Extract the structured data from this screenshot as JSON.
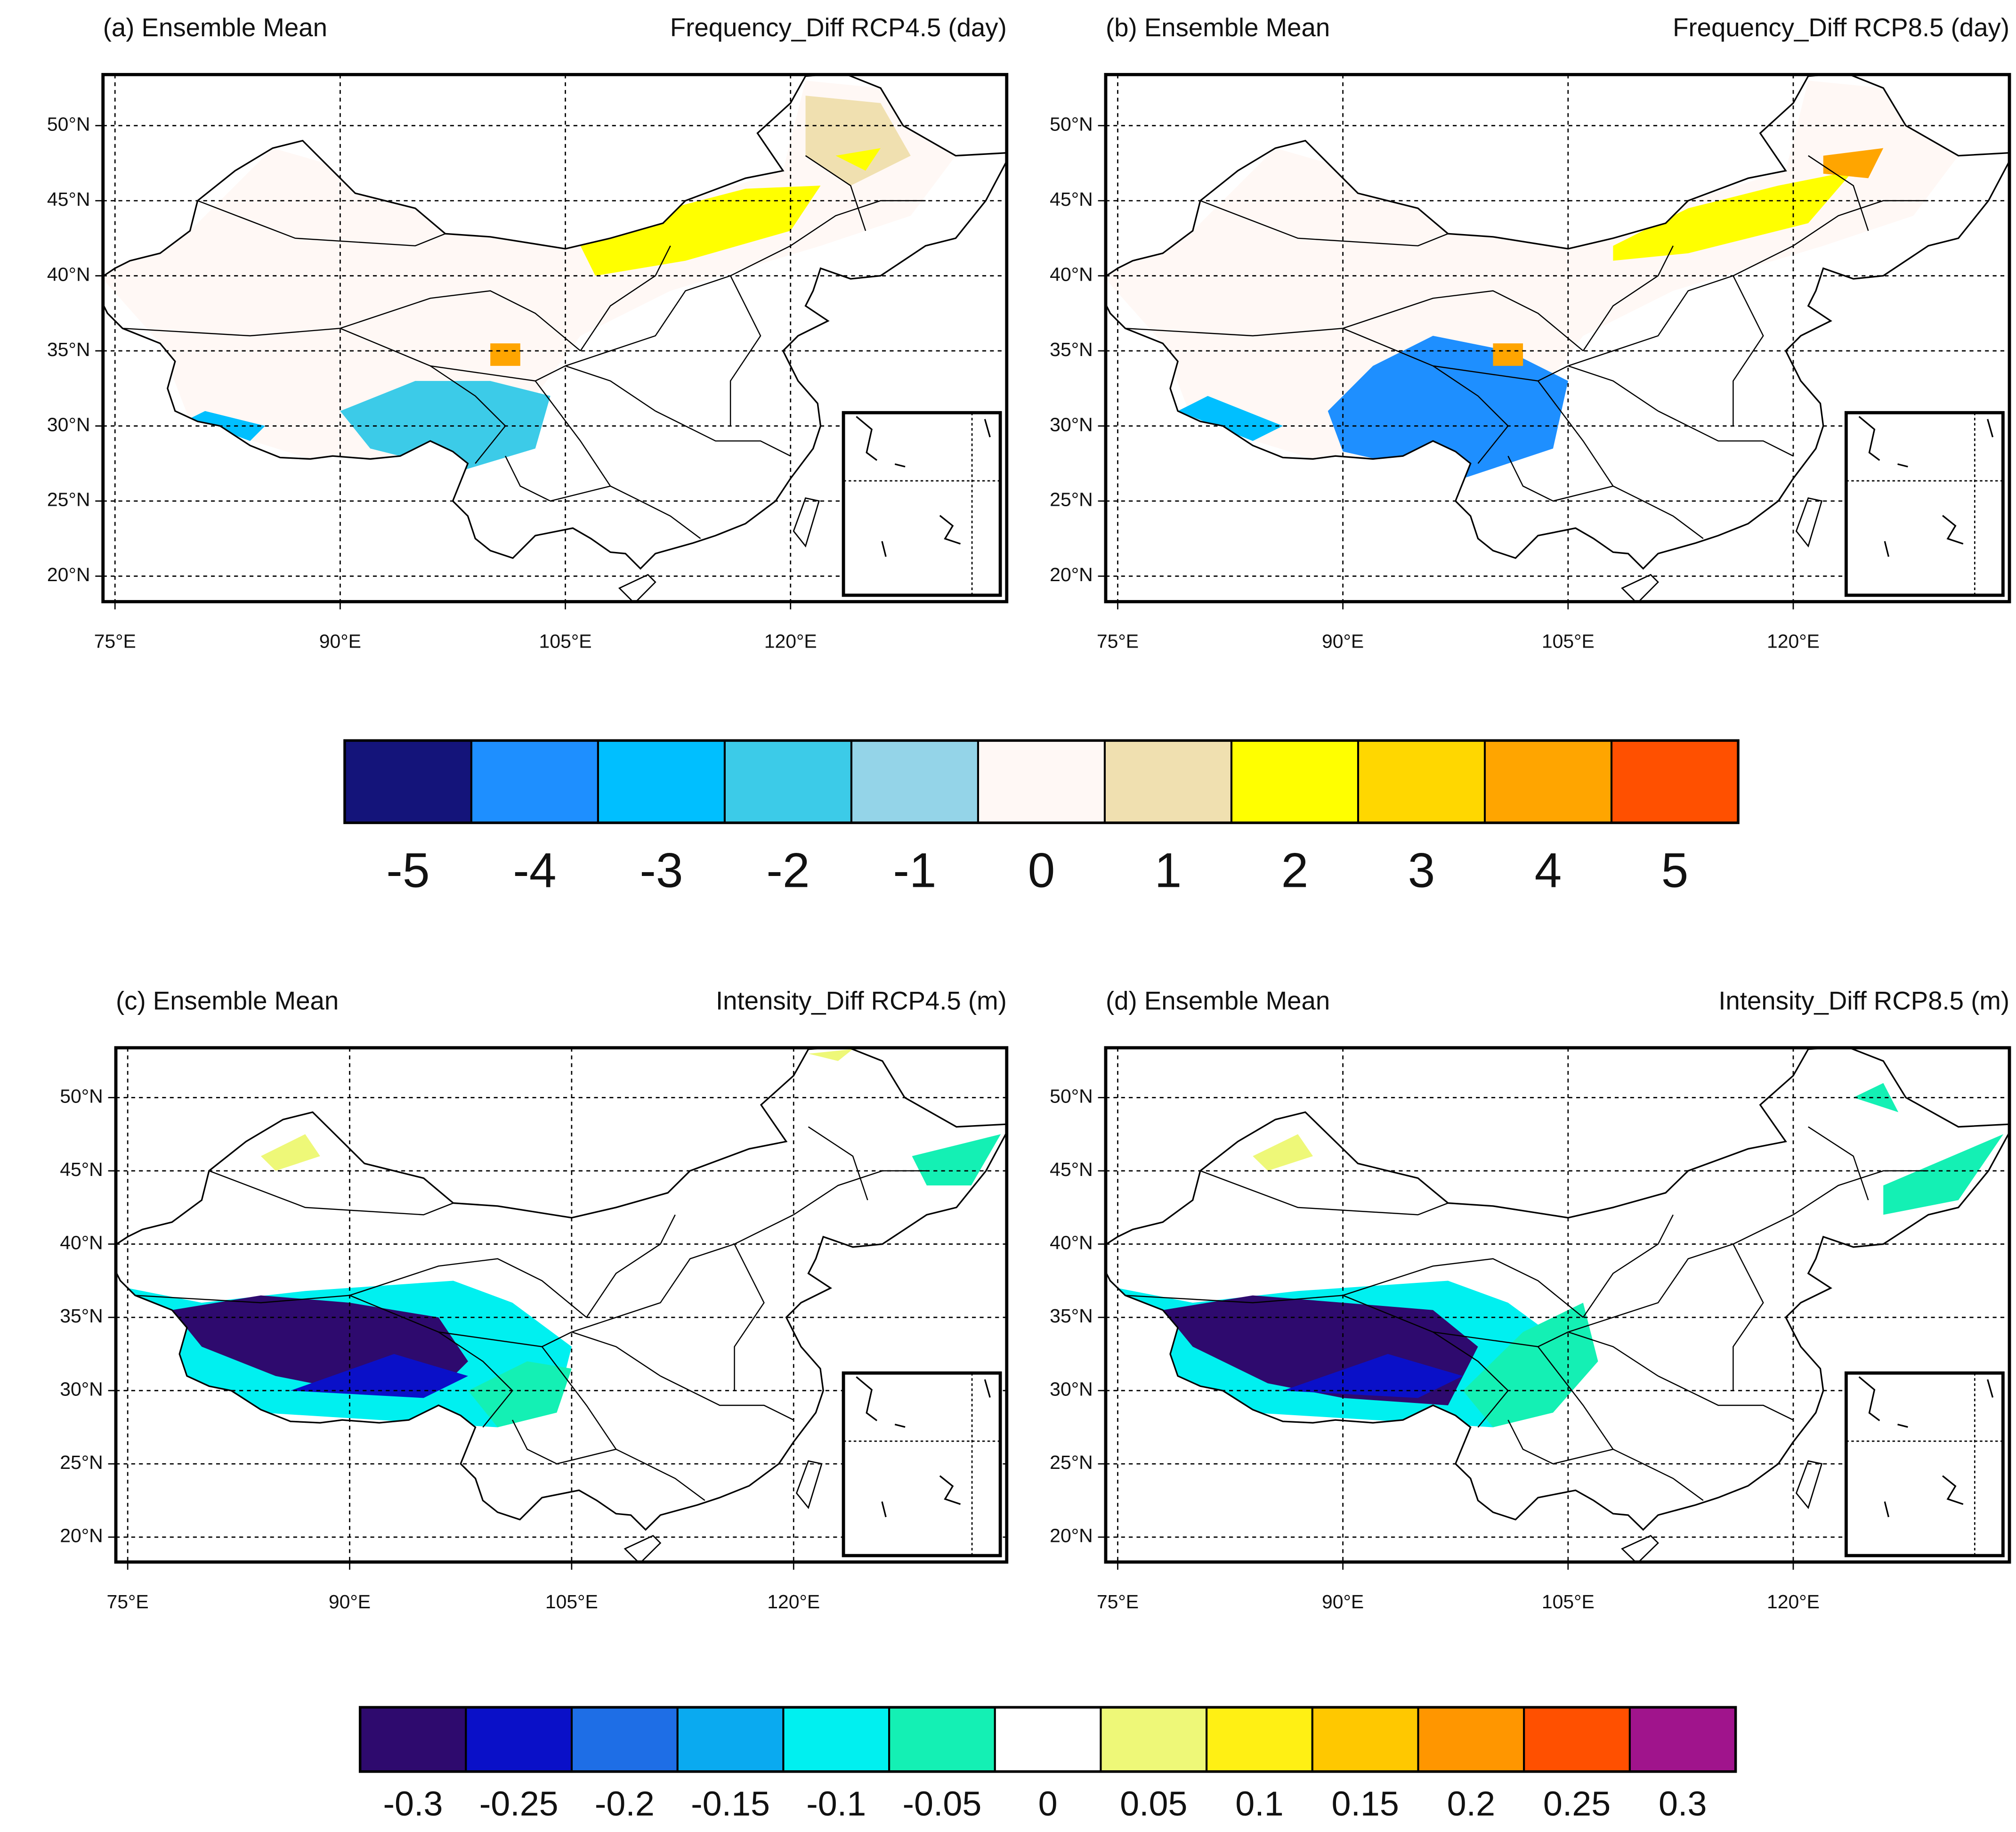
{
  "panels": [
    {
      "label": "(a) Ensemble Mean",
      "title": "Frequency_Diff RCP4.5 (day)"
    },
    {
      "label": "(b) Ensemble Mean",
      "title": "Frequency_Diff RCP8.5 (day)"
    },
    {
      "label": "(c) Ensemble Mean",
      "title": "Intensity_Diff RCP4.5 (m)"
    },
    {
      "label": "(d) Ensemble Mean",
      "title": "Intensity_Diff RCP8.5 (m)"
    }
  ],
  "axes": {
    "xlim": [
      74.2,
      134.4
    ],
    "ylim": [
      18.3,
      53.4
    ],
    "xticks": [
      {
        "value": 75,
        "label": "75°E"
      },
      {
        "value": 90,
        "label": "90°E"
      },
      {
        "value": 105,
        "label": "105°E"
      },
      {
        "value": 120,
        "label": "120°E"
      }
    ],
    "yticks": [
      {
        "value": 20,
        "label": "20°N"
      },
      {
        "value": 25,
        "label": "25°N"
      },
      {
        "value": 30,
        "label": "30°N"
      },
      {
        "value": 35,
        "label": "35°N"
      },
      {
        "value": 40,
        "label": "40°N"
      },
      {
        "value": 45,
        "label": "45°N"
      },
      {
        "value": 50,
        "label": "50°N"
      }
    ]
  },
  "colorbars": [
    {
      "levels": [
        -5,
        -4,
        -3,
        -2,
        -1,
        0,
        1,
        2,
        3,
        4,
        5
      ],
      "colors": [
        "#14147a",
        "#1e8fff",
        "#00bfff",
        "#3ccbe8",
        "#94d4e8",
        "#fff8f5",
        "#f0e0b0",
        "#ffff00",
        "#ffd700",
        "#ffa500",
        "#ff5000"
      ]
    },
    {
      "levels": [
        -0.3,
        -0.25,
        -0.2,
        -0.15,
        -0.1,
        -0.05,
        0,
        0.05,
        0.1,
        0.15,
        0.2,
        0.25,
        0.3
      ],
      "colors": [
        "#2e0a6e",
        "#0a10c8",
        "#1e6ee6",
        "#0aaaf0",
        "#00f0f0",
        "#14f0b4",
        "#ffffff",
        "#eef878",
        "#fff014",
        "#ffc800",
        "#ff9600",
        "#ff5000",
        "#a0148c"
      ]
    }
  ]
}
